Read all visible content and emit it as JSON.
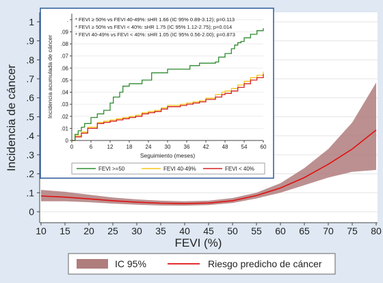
{
  "chart_data": [
    {
      "type": "area",
      "xlabel": "FEVI (%)",
      "ylabel": "Incidencia de cáncer",
      "xlim": [
        10,
        80
      ],
      "ylim": [
        0,
        1.05
      ],
      "xticks": [
        "10",
        "15",
        "20",
        "25",
        "30",
        "35",
        "40",
        "45",
        "50",
        "55",
        "60",
        "65",
        "70",
        "75",
        "80"
      ],
      "yticks": [
        "0",
        ".1",
        ".2",
        ".3",
        ".4",
        ".5",
        ".6",
        ".7",
        ".8",
        ".9",
        "1"
      ],
      "grid": "horizontal",
      "legend_position": "bottom",
      "legend": [
        "IC 95%",
        "Riesgo predicho de cáncer"
      ],
      "colors": {
        "band": "#b07d7d",
        "line": "#e01010"
      },
      "series": [
        {
          "name": "Riesgo predicho de cáncer",
          "x": [
            10,
            15,
            20,
            25,
            30,
            35,
            40,
            45,
            50,
            55,
            60,
            65,
            70,
            75,
            80
          ],
          "values": [
            0.083,
            0.077,
            0.068,
            0.058,
            0.05,
            0.045,
            0.043,
            0.046,
            0.058,
            0.085,
            0.125,
            0.18,
            0.25,
            0.33,
            0.43
          ]
        },
        {
          "name": "IC 95%",
          "x": [
            10,
            15,
            20,
            25,
            30,
            35,
            40,
            45,
            50,
            55,
            60,
            65,
            70,
            75,
            80
          ],
          "lower": [
            0.055,
            0.055,
            0.05,
            0.043,
            0.037,
            0.033,
            0.032,
            0.035,
            0.046,
            0.07,
            0.1,
            0.14,
            0.18,
            0.21,
            0.22
          ],
          "upper": [
            0.115,
            0.105,
            0.09,
            0.075,
            0.065,
            0.058,
            0.055,
            0.058,
            0.072,
            0.1,
            0.15,
            0.23,
            0.33,
            0.47,
            0.68
          ]
        }
      ]
    },
    {
      "type": "line",
      "xlabel": "Seguimiento (meses)",
      "ylabel": "Incidencia acumulada de cáncer",
      "xlim": [
        0,
        60
      ],
      "ylim": [
        0,
        0.105
      ],
      "xticks": [
        "0",
        "6",
        "12",
        "18",
        "24",
        "30",
        "36",
        "42",
        "48",
        "54",
        "60"
      ],
      "yticks": [
        "0",
        ".01",
        ".02",
        ".03",
        ".04",
        ".05",
        ".06",
        ".07",
        ".08",
        ".09",
        "."
      ],
      "grid": "horizontal",
      "legend_position": "bottom",
      "annotations": [
        "* FEVI ≥ 50% vs FEVI 40-49%: sHR 1.66 (IC 95% 0.89-3.12); p=0.113",
        "* FEVI ≥ 50% vs FEVI < 40%: sHR 1.75 (IC 95% 1.12-2.75); p=0.014",
        "* FEVI 40-49% vs FEVI < 40%: sHR 1.05 (IC 95% 0.56-2.00); p=0.873"
      ],
      "colors": {
        "FEVI >=50": "#2e8b2e",
        "FEVI 40-49%": "#f5c518",
        "FEVI < 40%": "#d42020"
      },
      "series": [
        {
          "name": "FEVI >=50",
          "x": [
            0,
            1,
            2,
            3,
            4,
            6,
            8,
            10,
            12,
            13,
            15,
            16,
            18,
            20,
            22,
            25,
            30,
            36,
            37,
            40,
            45,
            46,
            48,
            50,
            51,
            52,
            53,
            54,
            56,
            58,
            60
          ],
          "values": [
            0.0,
            0.005,
            0.008,
            0.011,
            0.014,
            0.019,
            0.022,
            0.025,
            0.031,
            0.036,
            0.04,
            0.045,
            0.047,
            0.047,
            0.05,
            0.056,
            0.059,
            0.059,
            0.062,
            0.064,
            0.065,
            0.069,
            0.072,
            0.076,
            0.079,
            0.081,
            0.082,
            0.085,
            0.088,
            0.091,
            0.093
          ]
        },
        {
          "name": "FEVI 40-49%",
          "x": [
            0,
            1,
            3,
            5,
            8,
            10,
            12,
            14,
            16,
            18,
            20,
            22,
            24,
            26,
            28,
            30,
            34,
            36,
            38,
            40,
            42,
            45,
            47,
            48,
            50,
            52,
            54,
            56,
            58,
            60
          ],
          "values": [
            0.0,
            0.004,
            0.007,
            0.011,
            0.015,
            0.016,
            0.017,
            0.018,
            0.019,
            0.02,
            0.021,
            0.023,
            0.024,
            0.025,
            0.027,
            0.029,
            0.03,
            0.031,
            0.032,
            0.033,
            0.035,
            0.038,
            0.04,
            0.041,
            0.043,
            0.046,
            0.049,
            0.052,
            0.054,
            0.057
          ]
        },
        {
          "name": "FEVI < 40%",
          "x": [
            0,
            1,
            3,
            5,
            8,
            10,
            12,
            14,
            16,
            18,
            20,
            22,
            24,
            26,
            28,
            30,
            34,
            36,
            38,
            40,
            42,
            45,
            47,
            48,
            50,
            52,
            54,
            56,
            58,
            60
          ],
          "values": [
            0.0,
            0.003,
            0.006,
            0.01,
            0.014,
            0.015,
            0.016,
            0.017,
            0.018,
            0.019,
            0.02,
            0.022,
            0.023,
            0.024,
            0.026,
            0.028,
            0.029,
            0.03,
            0.031,
            0.032,
            0.034,
            0.036,
            0.038,
            0.039,
            0.041,
            0.044,
            0.047,
            0.05,
            0.052,
            0.055
          ]
        }
      ]
    }
  ]
}
